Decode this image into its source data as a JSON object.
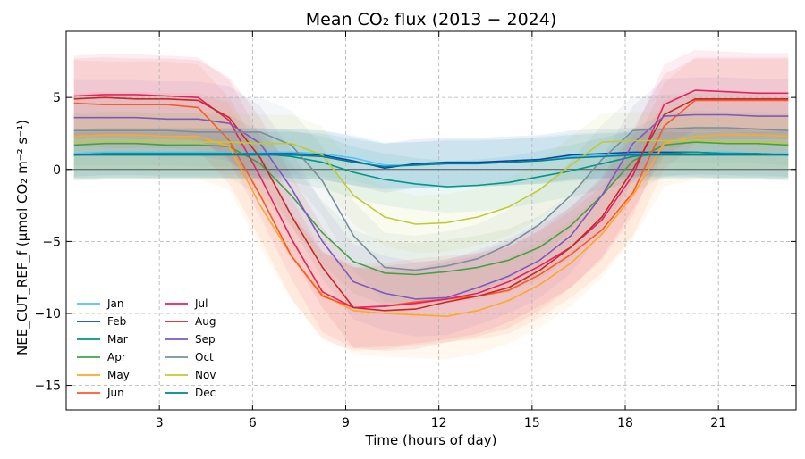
{
  "chart_data": {
    "type": "line",
    "title": "Mean CO₂ flux (2013 − 2024)",
    "xlabel": "Time (hours of day)",
    "ylabel": "NEE_CUT_REF_f (μmol CO₂ m⁻² s⁻¹)",
    "xlim": [
      0,
      23.5
    ],
    "ylim": [
      -16.7,
      9.6
    ],
    "xticks": [
      3,
      6,
      9,
      12,
      15,
      18,
      21
    ],
    "xtick_labels": [
      "3",
      "6",
      "9",
      "12",
      "15",
      "18",
      "21"
    ],
    "yticks": [
      5,
      0,
      -5,
      -10,
      -15
    ],
    "ytick_labels": [
      "5",
      "0",
      "−5",
      "−10",
      "−15"
    ],
    "grid": true,
    "zero_line": true,
    "legend_placement": "lower-left",
    "legend_columns": 2,
    "x": [
      0.25,
      1.25,
      2.25,
      3.25,
      4.25,
      5.25,
      6.25,
      7.25,
      8.25,
      9.25,
      10.25,
      11.25,
      12.25,
      13.25,
      14.25,
      15.25,
      16.25,
      17.25,
      18.25,
      19.25,
      20.25,
      21.25,
      22.25,
      23.25
    ],
    "series": [
      {
        "name": "Jan",
        "color": "#4fc3f7",
        "band": 1.6,
        "values": [
          1.1,
          1.2,
          1.2,
          1.2,
          1.2,
          1.2,
          1.2,
          1.2,
          1.1,
          0.8,
          0.3,
          0.3,
          0.5,
          0.5,
          0.5,
          0.7,
          0.9,
          1.0,
          1.1,
          1.2,
          1.2,
          1.2,
          1.1,
          1.1
        ]
      },
      {
        "name": "Feb",
        "color": "#0d47a1",
        "band": 1.7,
        "values": [
          1.0,
          1.1,
          1.1,
          1.1,
          1.1,
          1.1,
          1.1,
          1.1,
          1.0,
          0.6,
          0.1,
          0.4,
          0.5,
          0.5,
          0.6,
          0.7,
          1.0,
          1.1,
          1.2,
          1.2,
          1.2,
          1.1,
          1.1,
          1.0
        ]
      },
      {
        "name": "Mar",
        "color": "#009688",
        "band": 1.8,
        "values": [
          1.0,
          1.1,
          1.1,
          1.1,
          1.1,
          1.1,
          1.1,
          0.9,
          0.5,
          -0.2,
          -0.7,
          -1.0,
          -1.2,
          -1.1,
          -0.9,
          -0.5,
          -0.1,
          0.4,
          0.9,
          1.1,
          1.2,
          1.1,
          1.1,
          1.0
        ]
      },
      {
        "name": "Apr",
        "color": "#43a047",
        "band": 2.2,
        "values": [
          1.7,
          1.8,
          1.8,
          1.7,
          1.7,
          1.6,
          0.4,
          -1.8,
          -4.4,
          -6.4,
          -7.2,
          -7.3,
          -7.1,
          -6.8,
          -6.3,
          -5.4,
          -3.9,
          -1.8,
          0.6,
          1.7,
          1.9,
          1.8,
          1.8,
          1.7
        ]
      },
      {
        "name": "May",
        "color": "#ffa726",
        "band": 3.0,
        "values": [
          2.3,
          2.4,
          2.4,
          2.3,
          2.3,
          1.6,
          -2.5,
          -6.0,
          -8.7,
          -9.8,
          -10.0,
          -10.1,
          -10.2,
          -9.8,
          -9.1,
          -8.0,
          -6.5,
          -4.5,
          -1.8,
          1.8,
          2.3,
          2.4,
          2.4,
          2.3
        ]
      },
      {
        "name": "Jun",
        "color": "#ff5722",
        "band": 3.0,
        "values": [
          4.6,
          4.5,
          4.5,
          4.5,
          4.3,
          2.0,
          -1.8,
          -6.0,
          -8.8,
          -9.6,
          -9.5,
          -9.2,
          -9.0,
          -8.8,
          -8.4,
          -7.3,
          -5.9,
          -4.2,
          -1.6,
          3.0,
          4.8,
          4.8,
          4.8,
          4.8
        ]
      },
      {
        "name": "Jul",
        "color": "#e91e63",
        "band": 2.8,
        "values": [
          5.1,
          5.2,
          5.2,
          5.1,
          5.0,
          3.4,
          -0.5,
          -4.8,
          -8.5,
          -9.6,
          -9.5,
          -9.3,
          -9.0,
          -8.6,
          -7.8,
          -6.7,
          -5.4,
          -3.5,
          -0.4,
          4.5,
          5.5,
          5.4,
          5.3,
          5.3
        ]
      },
      {
        "name": "Aug",
        "color": "#c62828",
        "band": 2.8,
        "values": [
          4.9,
          5.0,
          4.9,
          4.9,
          4.8,
          3.6,
          0.8,
          -3.2,
          -6.8,
          -9.6,
          -9.8,
          -9.7,
          -9.2,
          -8.8,
          -8.2,
          -7.0,
          -5.4,
          -3.3,
          0.0,
          3.8,
          4.9,
          4.9,
          4.9,
          4.9
        ]
      },
      {
        "name": "Sep",
        "color": "#7e57c2",
        "band": 2.6,
        "values": [
          3.6,
          3.6,
          3.6,
          3.5,
          3.5,
          3.2,
          1.8,
          -1.3,
          -5.0,
          -7.8,
          -8.6,
          -9.0,
          -8.9,
          -8.2,
          -7.4,
          -6.3,
          -4.6,
          -1.8,
          1.8,
          3.7,
          3.8,
          3.8,
          3.7,
          3.7
        ]
      },
      {
        "name": "Oct",
        "color": "#78909c",
        "band": 2.4,
        "values": [
          2.7,
          2.7,
          2.7,
          2.7,
          2.6,
          2.6,
          2.6,
          1.7,
          -0.8,
          -4.6,
          -6.8,
          -7.0,
          -6.7,
          -6.2,
          -5.2,
          -3.8,
          -1.8,
          0.7,
          2.7,
          2.8,
          2.9,
          2.9,
          2.8,
          2.7
        ]
      },
      {
        "name": "Nov",
        "color": "#c0ca33",
        "band": 2.0,
        "values": [
          1.9,
          2.0,
          2.0,
          1.9,
          1.9,
          1.9,
          1.8,
          1.8,
          1.0,
          -1.8,
          -3.3,
          -3.8,
          -3.7,
          -3.3,
          -2.6,
          -1.4,
          0.3,
          1.9,
          2.0,
          2.0,
          2.0,
          1.9,
          1.9,
          1.8
        ]
      },
      {
        "name": "Dec",
        "color": "#00838f",
        "band": 1.6,
        "values": [
          1.0,
          1.0,
          1.0,
          1.0,
          1.0,
          1.0,
          1.0,
          1.0,
          0.9,
          0.5,
          0.2,
          0.3,
          0.4,
          0.4,
          0.5,
          0.6,
          0.8,
          0.9,
          1.0,
          1.0,
          1.0,
          1.0,
          1.0,
          1.0
        ]
      }
    ]
  }
}
